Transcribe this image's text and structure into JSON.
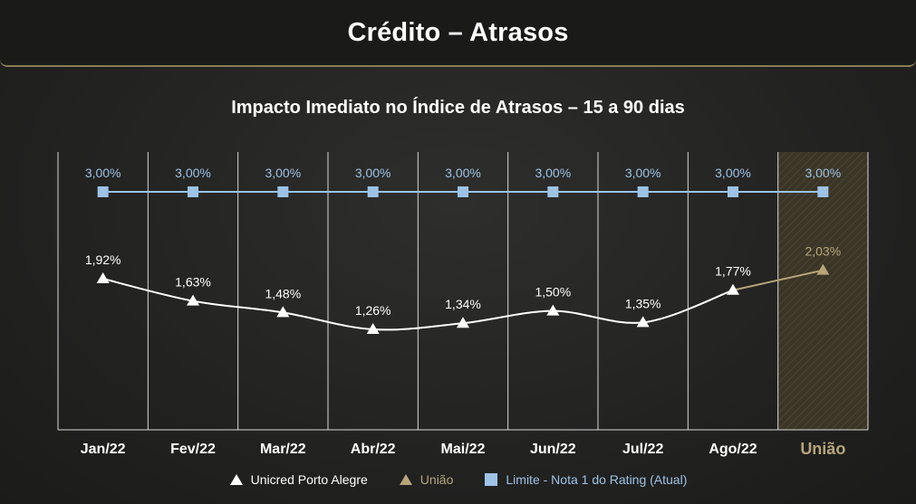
{
  "header": {
    "title": "Crédito – Atrasos"
  },
  "colors": {
    "unicred": "#ffffff",
    "uniao": "#b8a57a",
    "limite": "#9cc3e6",
    "uniao_highlight": "#3a3526"
  },
  "legend": {
    "items": [
      {
        "label": "Unicred Porto Alegre",
        "marker": "triangle-icon",
        "color": "#ffffff"
      },
      {
        "label": "União",
        "marker": "triangle-icon",
        "color": "#b8a57a"
      },
      {
        "label": "Limite - Nota 1 do Rating (Atual)",
        "marker": "square-icon",
        "color": "#9cc3e6"
      }
    ]
  },
  "chart_data": {
    "type": "line",
    "title": "Impacto Imediato no Índice de Atrasos – 15 a 90 dias",
    "categories": [
      "Jan/22",
      "Fev/22",
      "Mar/22",
      "Abr/22",
      "Mai/22",
      "Jun/22",
      "Jul/22",
      "Ago/22",
      "União"
    ],
    "series": [
      {
        "name": "Unicred Porto Alegre",
        "values": [
          1.92,
          1.63,
          1.48,
          1.26,
          1.34,
          1.5,
          1.35,
          1.77,
          null
        ],
        "labels": [
          "1,92%",
          "1,63%",
          "1,48%",
          "1,26%",
          "1,34%",
          "1,50%",
          "1,35%",
          "1,77%",
          ""
        ],
        "color": "#ffffff",
        "marker": "triangle"
      },
      {
        "name": "União",
        "values": [
          null,
          null,
          null,
          null,
          null,
          null,
          null,
          1.77,
          2.03
        ],
        "labels": [
          "",
          "",
          "",
          "",
          "",
          "",
          "",
          "",
          "2,03%"
        ],
        "color": "#b8a57a",
        "marker": "triangle"
      },
      {
        "name": "Limite - Nota 1 do Rating (Atual)",
        "values": [
          3.0,
          3.0,
          3.0,
          3.0,
          3.0,
          3.0,
          3.0,
          3.0,
          3.0
        ],
        "labels": [
          "3,00%",
          "3,00%",
          "3,00%",
          "3,00%",
          "3,00%",
          "3,00%",
          "3,00%",
          "3,00%",
          "3,00%"
        ],
        "color": "#9cc3e6",
        "marker": "square"
      }
    ],
    "ylim": [
      0,
      3.5
    ],
    "grid": true,
    "legend_position": "bottom"
  }
}
